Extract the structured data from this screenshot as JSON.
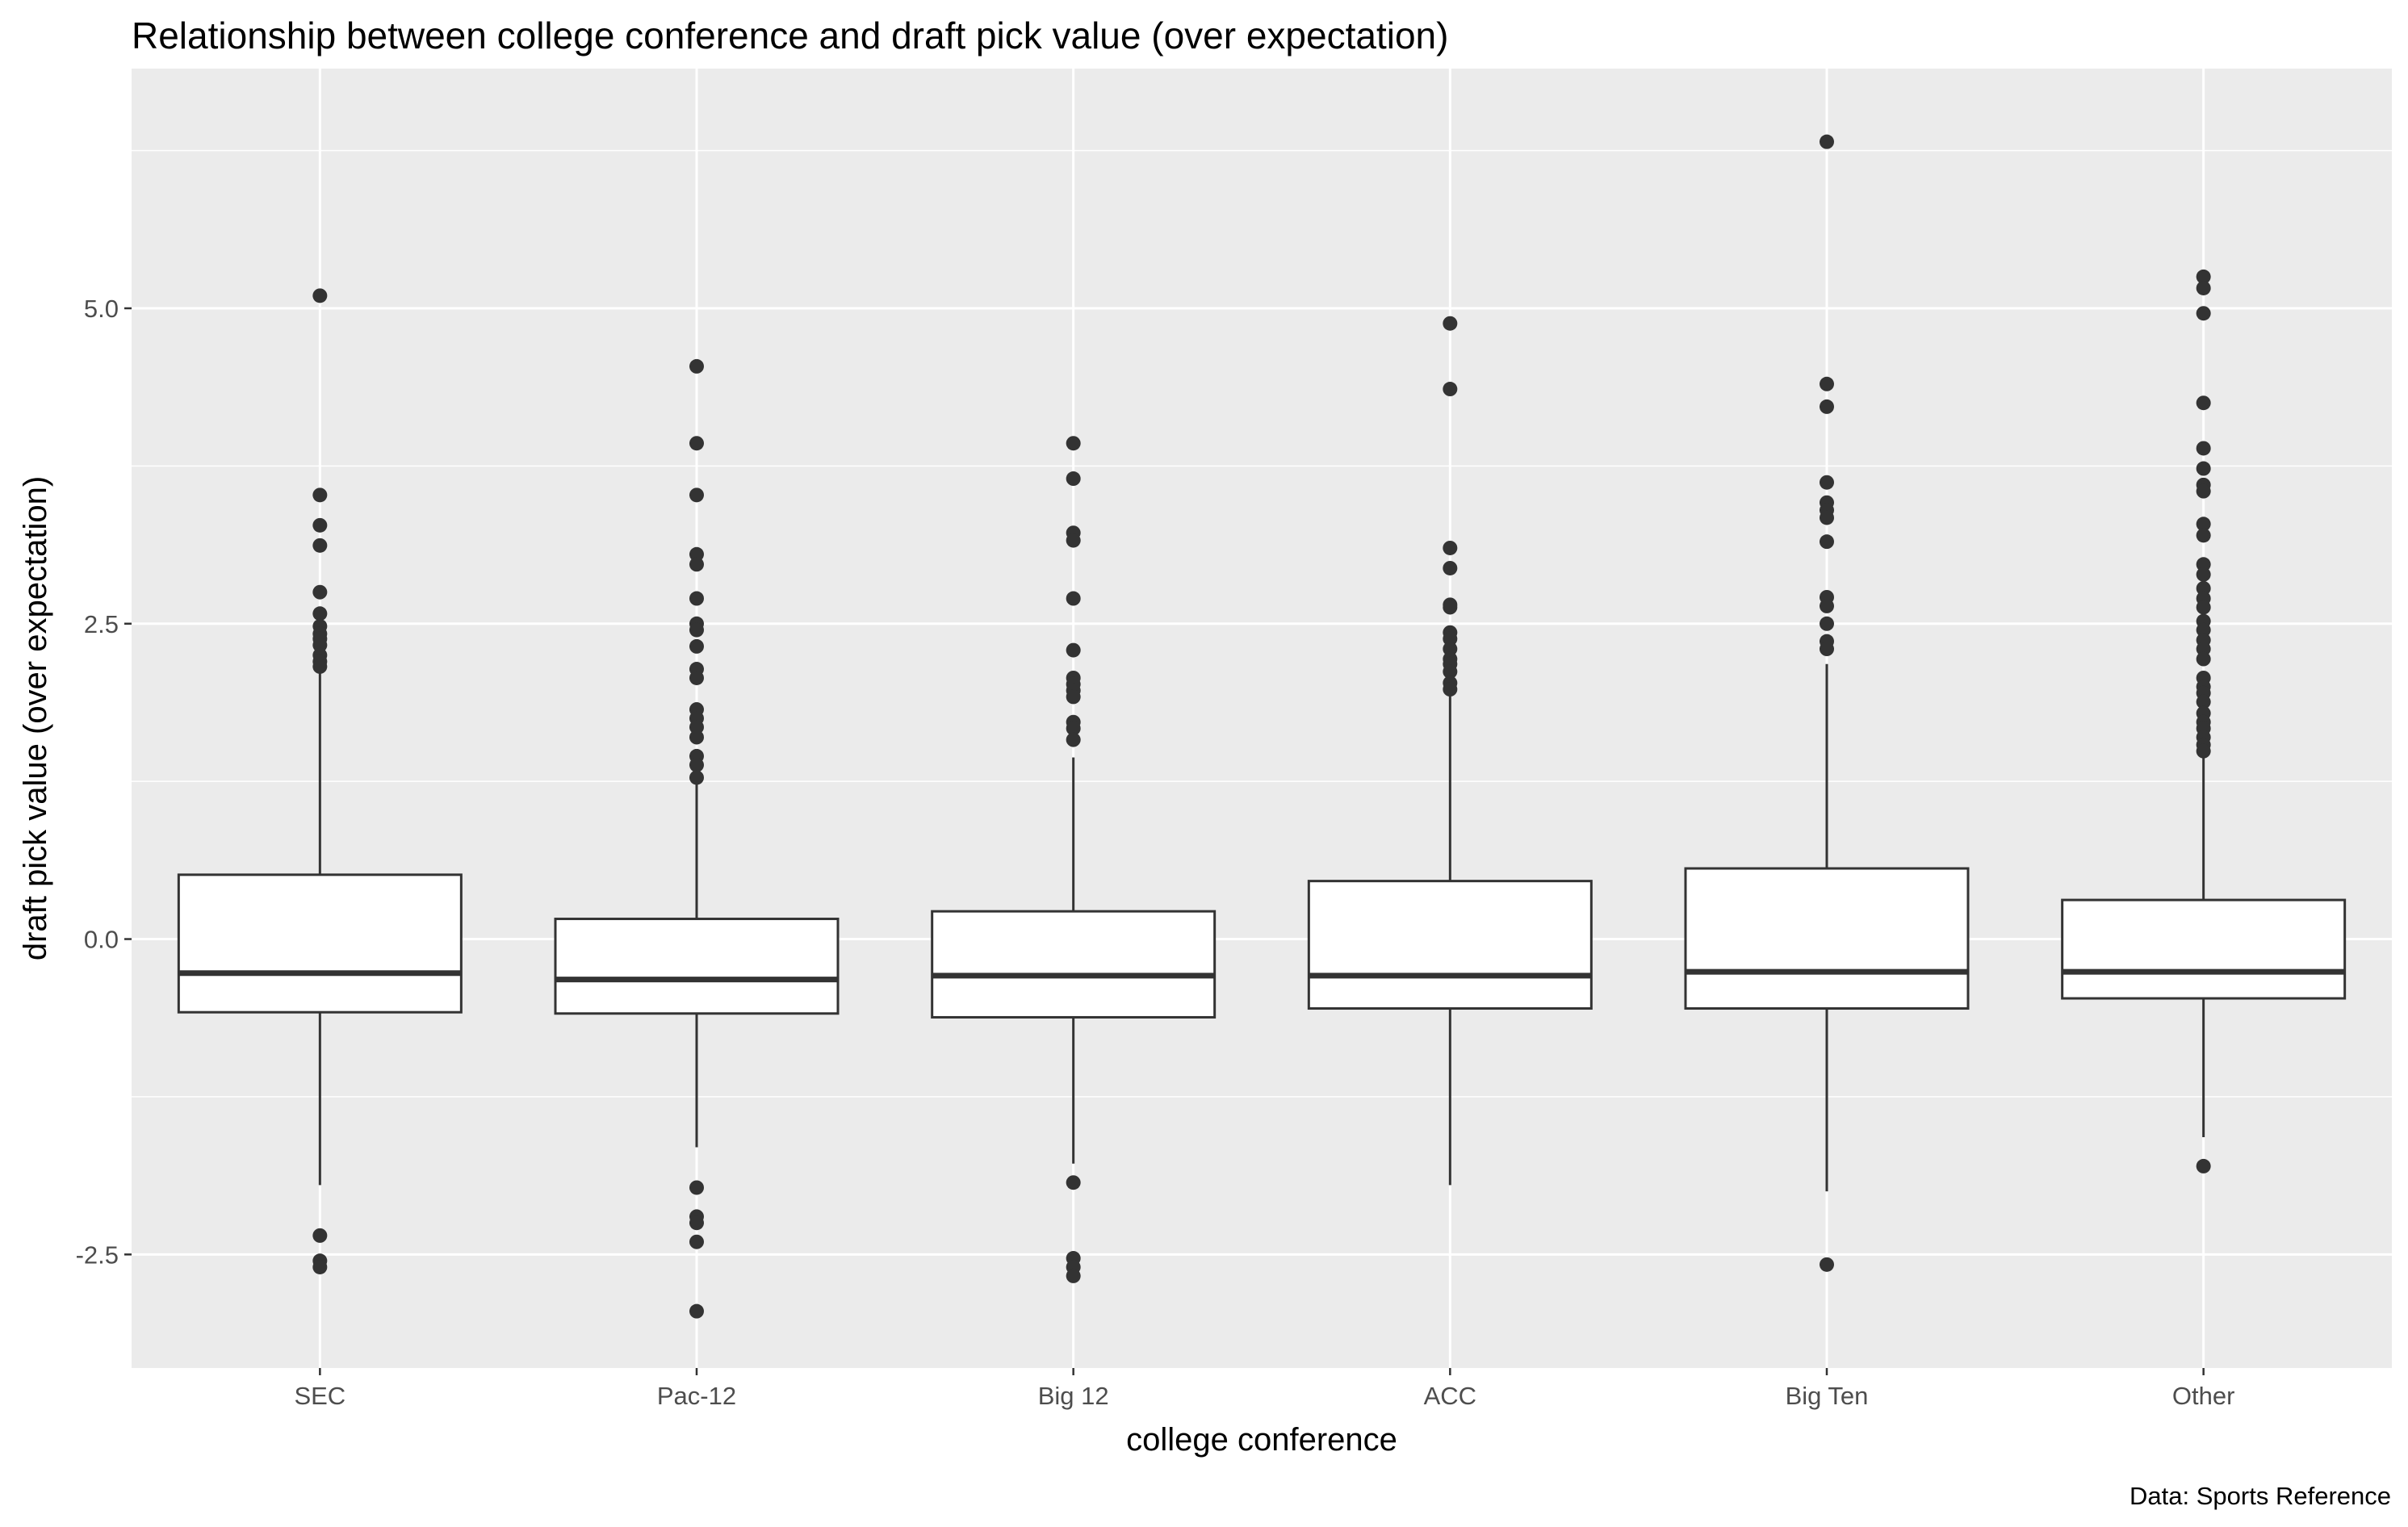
{
  "chart_data": {
    "type": "box",
    "title": "Relationship between college conference and draft pick value (over expectation)",
    "xlabel": "college conference",
    "ylabel": "draft pick value (over expectation)",
    "caption": "Data: Sports Reference",
    "ylim": [
      -3.4,
      6.9
    ],
    "yticks": [
      -2.5,
      0.0,
      2.5,
      5.0
    ],
    "ytick_labels": [
      "-2.5",
      "0.0",
      "2.5",
      "5.0"
    ],
    "grid": true,
    "legend": "none",
    "colors": {
      "panel": "#ebebeb",
      "grid": "#ffffff",
      "box_fill": "#ffffff",
      "box_line": "#333333",
      "point": "#333333",
      "text": "#4d4d4d"
    },
    "categories": [
      "SEC",
      "Pac-12",
      "Big 12",
      "ACC",
      "Big Ten",
      "Other"
    ],
    "boxes": [
      {
        "category": "SEC",
        "q1": -0.58,
        "median": -0.27,
        "q3": 0.51,
        "whisker_low": -1.95,
        "whisker_high": 2.14,
        "outliers": [
          5.1,
          3.52,
          3.28,
          3.12,
          2.75,
          2.58,
          2.48,
          2.42,
          2.38,
          2.33,
          2.25,
          2.2,
          2.16,
          -2.35,
          -2.55,
          -2.6
        ]
      },
      {
        "category": "Pac-12",
        "q1": -0.59,
        "median": -0.32,
        "q3": 0.16,
        "whisker_low": -1.65,
        "whisker_high": 1.25,
        "outliers": [
          4.54,
          3.93,
          3.52,
          3.05,
          2.97,
          2.7,
          2.5,
          2.45,
          2.32,
          2.14,
          2.07,
          1.82,
          1.75,
          1.68,
          1.6,
          1.45,
          1.38,
          1.28,
          -1.97,
          -2.2,
          -2.25,
          -2.4,
          -2.95
        ]
      },
      {
        "category": "Big 12",
        "q1": -0.62,
        "median": -0.29,
        "q3": 0.22,
        "whisker_low": -1.78,
        "whisker_high": 1.44,
        "outliers": [
          3.93,
          3.65,
          3.22,
          3.16,
          2.7,
          2.29,
          2.07,
          2.02,
          1.97,
          1.92,
          1.72,
          1.67,
          1.58,
          -1.93,
          -2.53,
          -2.6,
          -2.67
        ]
      },
      {
        "category": "ACC",
        "q1": -0.55,
        "median": -0.29,
        "q3": 0.46,
        "whisker_low": -1.95,
        "whisker_high": 1.93,
        "outliers": [
          4.88,
          4.36,
          3.1,
          2.94,
          2.65,
          2.63,
          2.43,
          2.38,
          2.3,
          2.22,
          2.18,
          2.12,
          2.03,
          1.98
        ]
      },
      {
        "category": "Big Ten",
        "q1": -0.55,
        "median": -0.26,
        "q3": 0.56,
        "whisker_low": -2.0,
        "whisker_high": 2.18,
        "outliers": [
          6.32,
          4.4,
          4.22,
          3.62,
          3.46,
          3.4,
          3.34,
          3.15,
          2.71,
          2.64,
          2.5,
          2.36,
          2.3,
          -2.58
        ]
      },
      {
        "category": "Other",
        "q1": -0.47,
        "median": -0.26,
        "q3": 0.31,
        "whisker_low": -1.57,
        "whisker_high": 1.45,
        "outliers": [
          5.25,
          5.16,
          4.96,
          4.25,
          3.89,
          3.73,
          3.6,
          3.55,
          3.29,
          3.2,
          2.97,
          2.89,
          2.78,
          2.7,
          2.63,
          2.52,
          2.45,
          2.37,
          2.3,
          2.22,
          2.07,
          2.0,
          1.95,
          1.88,
          1.79,
          1.72,
          1.67,
          1.6,
          1.54,
          1.49,
          -1.8
        ]
      }
    ]
  }
}
